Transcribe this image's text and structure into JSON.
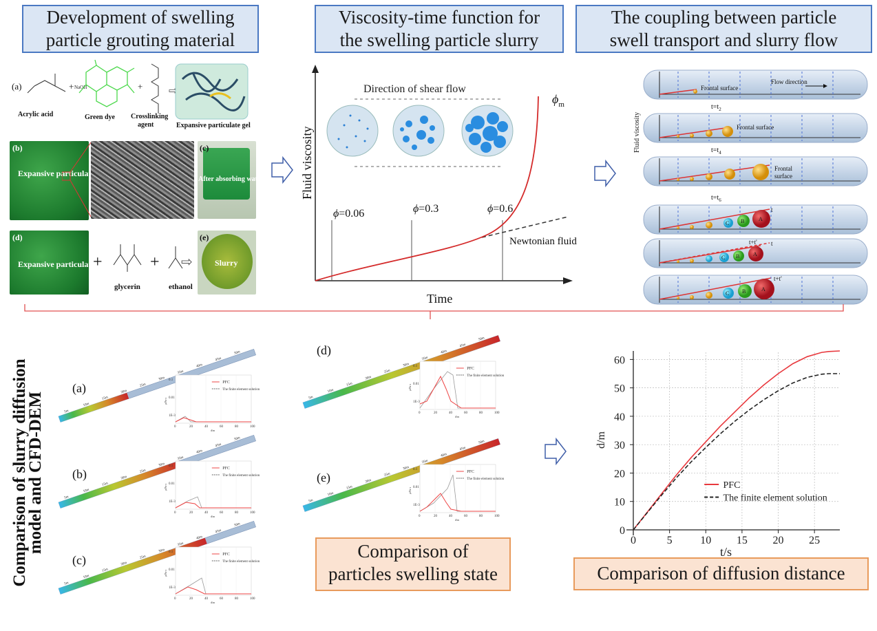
{
  "panels": {
    "p1_title": [
      "Development of swelling",
      "particle grouting material"
    ],
    "p2_title": [
      "Viscosity-time function for",
      "the swelling particle slurry"
    ],
    "p3_title": [
      "The coupling between particle",
      "swell transport and slurry flow"
    ],
    "left_vertical_title": [
      "Comparison of slurry diffusion",
      "model and CFD-DEM"
    ],
    "swelling_caption": [
      "Comparison of",
      "particles swelling state"
    ],
    "distance_caption": "Comparison of diffusion distance"
  },
  "material": {
    "a": "(a)",
    "b": "(b)",
    "c": "(c)",
    "d": "(d)",
    "e": "(e)",
    "acrylic": "Acrylic acid",
    "naoh": "NaOH",
    "green_dye": "Green dye",
    "crosslink": [
      "Crosslinking",
      "agent"
    ],
    "gel": "Expansive particulate gel",
    "expansive": "Expansive particulate",
    "after": "After absorbing water",
    "glycerin": "glycerin",
    "ethanol": "ethanol",
    "slurry": "Slurry",
    "plus": "+"
  },
  "viscosity": {
    "ylabel": "Fluid viscosity",
    "xlabel": "Time",
    "shear": "Direction of shear flow",
    "phi1": "=0.06",
    "phi2": "=0.3",
    "phi3": "=0.6",
    "phim": "m",
    "newtonian": "Newtonian fluid"
  },
  "coupling": {
    "ylabel": "Fluid viscosity",
    "flow_dir": "Flow direction",
    "frontal": "Frontal surface",
    "frontal_a": "Frontal",
    "frontal_b": "surface",
    "t2": "t=t",
    "t2s": "2",
    "t4": "t=t",
    "t4s": "4",
    "t6": "t=t",
    "t6s": "6",
    "t": "t",
    "tt": "t+t'",
    "A": "A",
    "B": "B",
    "C": "C"
  },
  "sim": {
    "labels": [
      "(a)",
      "(b)",
      "(c)",
      "(d)",
      "(e)"
    ],
    "dist_ticks": [
      "5m",
      "10m",
      "15m",
      "20m",
      "25m",
      "30m",
      "35m",
      "40m",
      "45m",
      "50m"
    ],
    "legend_pfc": "PFC",
    "legend_fe": "The finite element solution",
    "y_ticks": [
      "0.1",
      "0.01",
      "1E-3"
    ],
    "x_ticks": [
      "0",
      "20",
      "40",
      "60",
      "80",
      "100"
    ],
    "xlab": "d/m",
    "ylab": "μ/Pa·s"
  },
  "chart_data": {
    "type": "line",
    "xlabel": "t/s",
    "ylabel": "d/m",
    "xlim": [
      0,
      28.5
    ],
    "ylim": [
      0,
      63
    ],
    "x_ticks": [
      0,
      5,
      10,
      15,
      20,
      25
    ],
    "y_ticks": [
      0,
      10,
      20,
      30,
      40,
      50,
      60
    ],
    "grid": true,
    "legend": "center-right",
    "series": [
      {
        "name": "PFC",
        "color": "#e8383d",
        "style": "solid",
        "x": [
          0,
          2,
          4,
          6,
          8,
          10,
          12,
          14,
          16,
          18,
          20,
          22,
          24,
          26,
          27,
          28.5
        ],
        "y": [
          0,
          6.5,
          13,
          19.5,
          25.5,
          31,
          36.5,
          41.5,
          46.5,
          51,
          55,
          58.5,
          61,
          62.5,
          62.8,
          63
        ]
      },
      {
        "name": "The finite element solution",
        "color": "#222222",
        "style": "dashed",
        "x": [
          0,
          2,
          4,
          6,
          8,
          10,
          12,
          14,
          16,
          18,
          20,
          22,
          24,
          26,
          27,
          28.5
        ],
        "y": [
          0,
          6.3,
          12.5,
          18.5,
          24,
          29,
          33.8,
          38.2,
          42.2,
          45.8,
          49,
          51.7,
          53.7,
          54.8,
          55,
          55
        ]
      }
    ]
  }
}
